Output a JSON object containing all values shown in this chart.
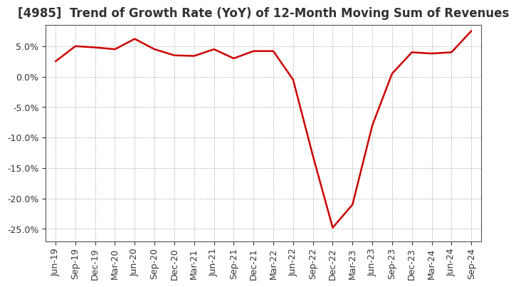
{
  "title": "[4985]  Trend of Growth Rate (YoY) of 12-Month Moving Sum of Revenues",
  "x_labels": [
    "Jun-19",
    "Sep-19",
    "Dec-19",
    "Mar-20",
    "Jun-20",
    "Sep-20",
    "Dec-20",
    "Mar-21",
    "Jun-21",
    "Sep-21",
    "Dec-21",
    "Mar-22",
    "Jun-22",
    "Sep-22",
    "Dec-22",
    "Mar-23",
    "Jun-23",
    "Sep-23",
    "Dec-23",
    "Mar-24",
    "Jun-24",
    "Sep-24"
  ],
  "y_values": [
    2.5,
    5.0,
    4.8,
    4.5,
    6.2,
    4.5,
    3.5,
    3.4,
    4.5,
    3.0,
    4.2,
    4.2,
    -0.5,
    -13.0,
    -24.8,
    -21.0,
    -8.0,
    0.5,
    4.0,
    3.8,
    4.0,
    7.5
  ],
  "line_color": "#cc0000",
  "line_width": 1.8,
  "ylim": [
    -27,
    8.5
  ],
  "yticks": [
    -25.0,
    -20.0,
    -15.0,
    -10.0,
    -5.0,
    0.0,
    5.0
  ],
  "background_color": "#ffffff",
  "grid_color": "#999999",
  "title_fontsize": 12,
  "tick_fontsize": 9,
  "title_color": "#333333"
}
